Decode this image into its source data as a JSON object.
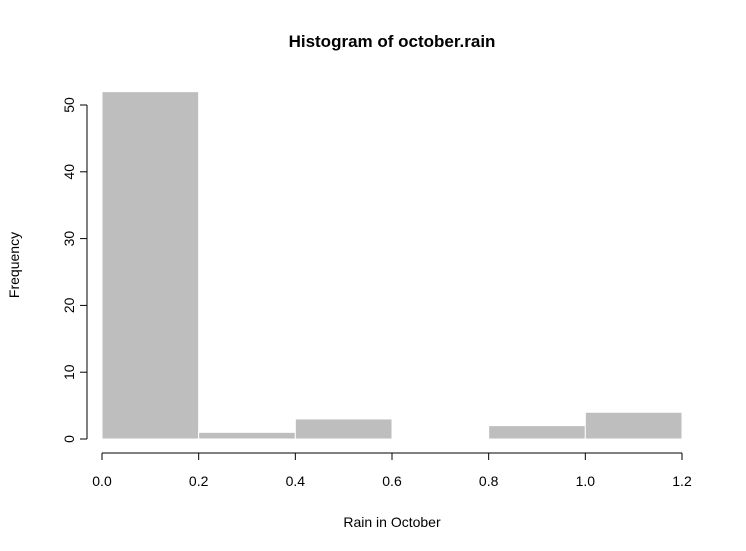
{
  "chart_data": {
    "type": "bar",
    "title": "Histogram of october.rain",
    "xlabel": "Rain in October",
    "ylabel": "Frequency",
    "bins": [
      {
        "x0": 0.0,
        "x1": 0.2,
        "count": 52
      },
      {
        "x0": 0.2,
        "x1": 0.4,
        "count": 1
      },
      {
        "x0": 0.4,
        "x1": 0.6,
        "count": 3
      },
      {
        "x0": 0.6,
        "x1": 0.8,
        "count": 0
      },
      {
        "x0": 0.8,
        "x1": 1.0,
        "count": 2
      },
      {
        "x0": 1.0,
        "x1": 1.2,
        "count": 4
      }
    ],
    "xlim": [
      0.0,
      1.2
    ],
    "ylim": [
      0,
      50
    ],
    "x_ticks": [
      "0.0",
      "0.2",
      "0.4",
      "0.6",
      "0.8",
      "1.0",
      "1.2"
    ],
    "y_ticks": [
      "0",
      "10",
      "20",
      "30",
      "40",
      "50"
    ],
    "bar_color": "#bebebe",
    "bar_border_color": "#ffffff",
    "grid": false
  }
}
